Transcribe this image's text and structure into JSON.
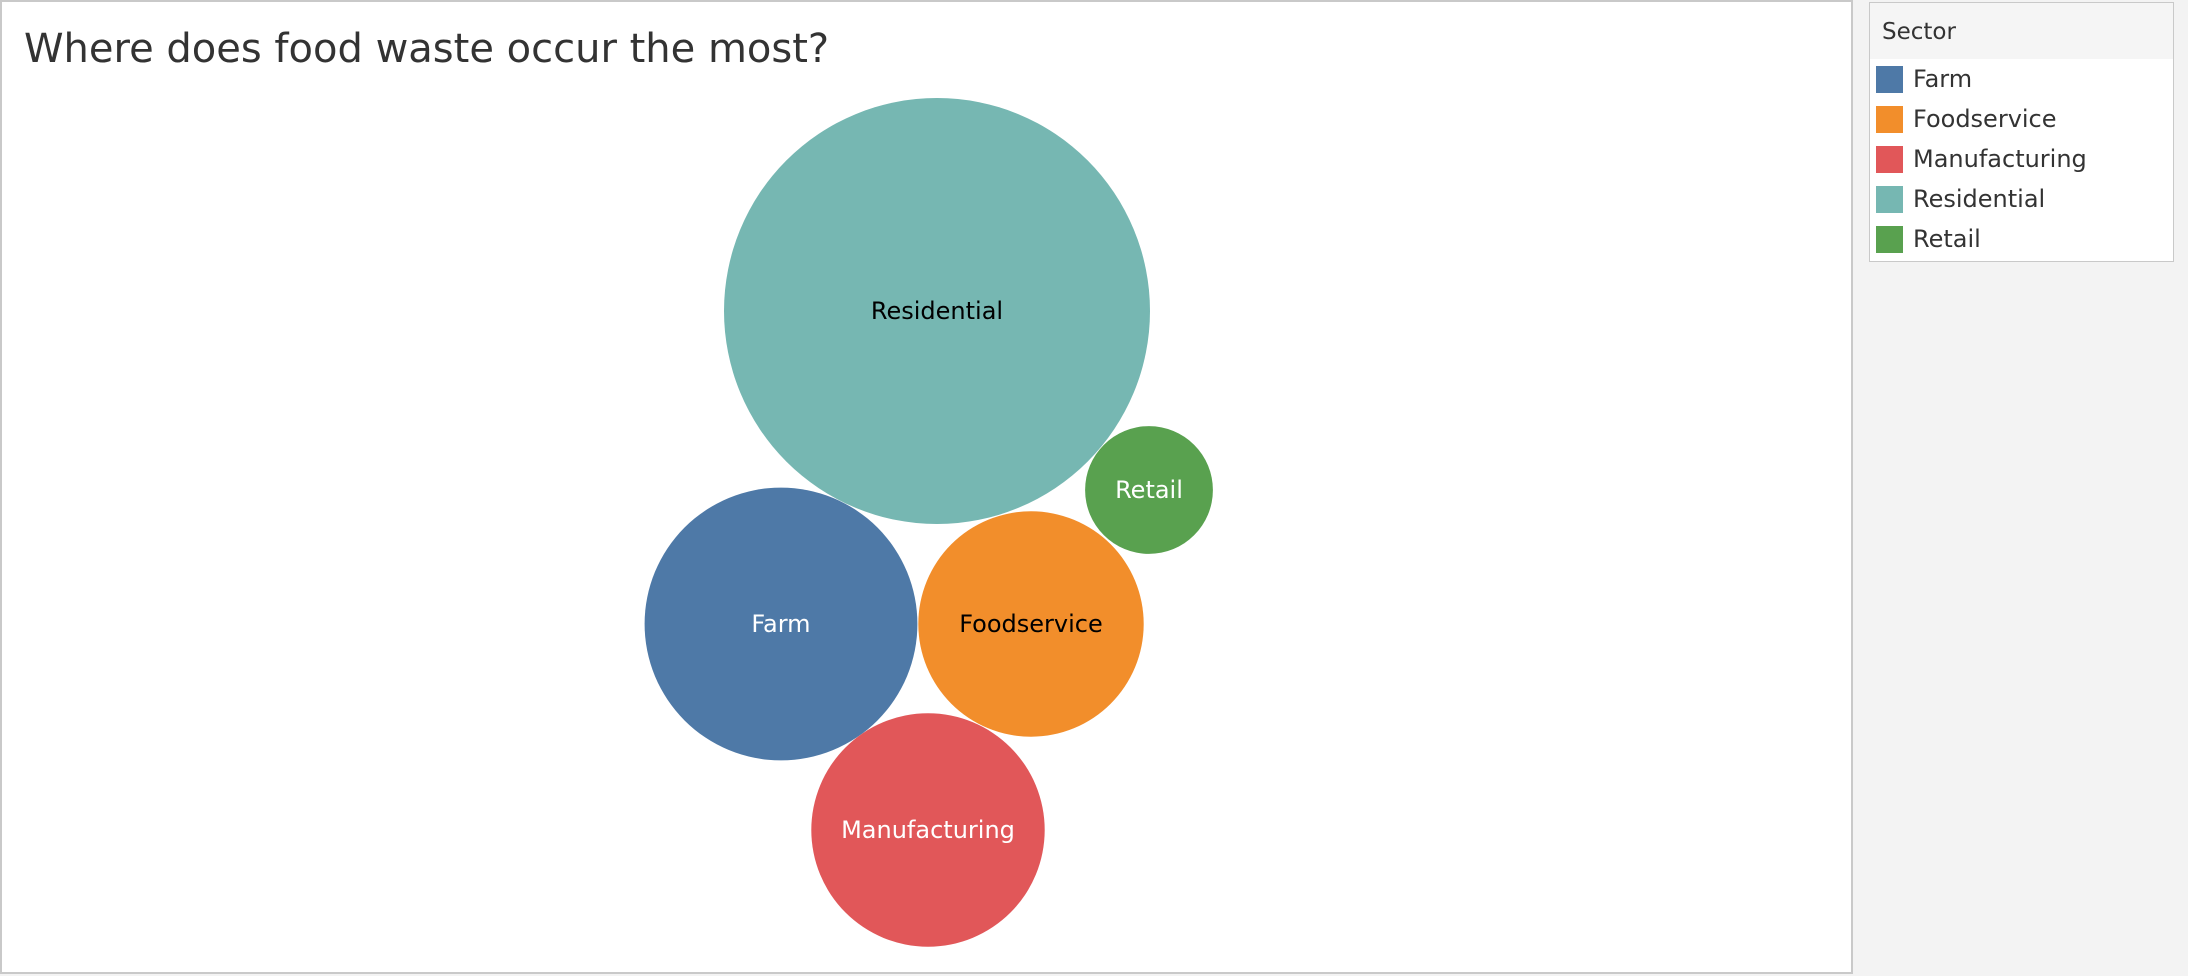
{
  "title": "Where does food waste occur the most?",
  "legend": {
    "title": "Sector",
    "items": [
      {
        "label": "Farm",
        "color": "#4e79a7"
      },
      {
        "label": "Foodservice",
        "color": "#f28e2b"
      },
      {
        "label": "Manufacturing",
        "color": "#e15759"
      },
      {
        "label": "Residential",
        "color": "#76b7b2"
      },
      {
        "label": "Retail",
        "color": "#59a14f"
      }
    ]
  },
  "chart_data": {
    "type": "packed-bubble",
    "title": "Where does food waste occur the most?",
    "legend_title": "Sector",
    "legend_position": "right",
    "size_unit": "relative bubble area",
    "bubbles": [
      {
        "category": "Residential",
        "value": 100,
        "color": "#76b7b2",
        "label_color": "#000000"
      },
      {
        "category": "Farm",
        "value": 41,
        "color": "#4e79a7",
        "label_color": "#ffffff"
      },
      {
        "category": "Foodservice",
        "value": 28,
        "color": "#f28e2b",
        "label_color": "#000000"
      },
      {
        "category": "Manufacturing",
        "value": 30,
        "color": "#e15759",
        "label_color": "#ffffff"
      },
      {
        "category": "Retail",
        "value": 9,
        "color": "#59a14f",
        "label_color": "#ffffff"
      }
    ]
  }
}
